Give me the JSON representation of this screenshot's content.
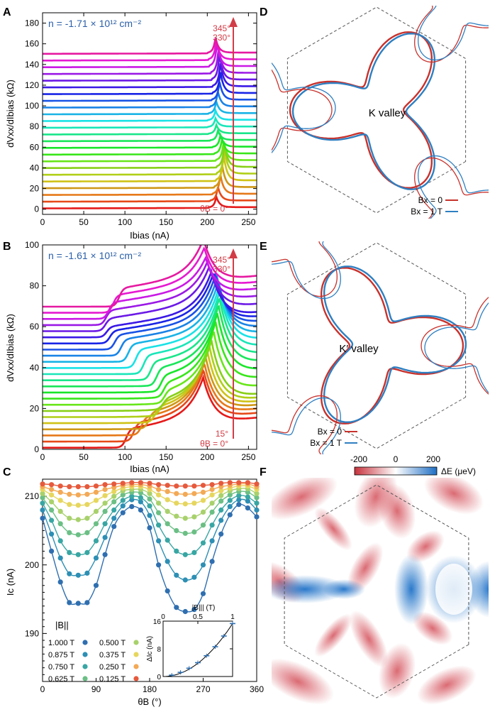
{
  "panels": {
    "A": {
      "letter": "A",
      "density": "n = -1.71 × 10¹² cm⁻²",
      "top_angles": [
        "345°",
        "330°"
      ],
      "bottom_angle": "θB = 0°"
    },
    "B": {
      "letter": "B",
      "density": "n = -1.61 × 10¹² cm⁻²",
      "top_angles": [
        "345°",
        "330°"
      ],
      "bottom_angles": [
        "15°",
        "θB = 0°"
      ]
    },
    "C": {
      "letter": "C",
      "legend_title": "|B||",
      "legend": [
        "1.000 T",
        "0.875 T",
        "0.750 T",
        "0.625 T",
        "0.500 T",
        "0.375 T",
        "0.250 T",
        "0.125 T"
      ],
      "inset_xlabel": "|B||| (T)",
      "inset_ylabel": "ΔIc (nA)"
    },
    "D": {
      "letter": "D",
      "valley": "K valley",
      "legend": [
        "Bx = 0",
        "Bx = 1 T"
      ]
    },
    "E": {
      "letter": "E",
      "valley": "K′ valley",
      "legend": [
        "Bx = 0",
        "Bx = 1 T"
      ]
    },
    "F": {
      "letter": "F",
      "colorbar_ticks": [
        "-200",
        "0",
        "200"
      ],
      "colorbar_label": "ΔE (μeV)"
    }
  },
  "colors": {
    "red": "#c8322c",
    "blue": "#2f7fc1",
    "arrow": "#d23c46",
    "dash": "#555555"
  },
  "chart_data": [
    {
      "type": "line",
      "id": "A",
      "xlabel": "Ibias (nA)",
      "ylabel": "dVxx/dIbias (kΩ)",
      "xlim": [
        0,
        260
      ],
      "ylim": [
        -5,
        190
      ],
      "xticks": [
        0,
        50,
        100,
        150,
        200,
        250
      ],
      "yticks": [
        0,
        20,
        40,
        60,
        80,
        100,
        120,
        140,
        160,
        180
      ],
      "series_count": 24,
      "angle_step_deg": 15,
      "offset_step_kohm": 6.5,
      "baseline_kohm": 0.8,
      "critical_current_nA": [
        211,
        213,
        216,
        218,
        220,
        221,
        221,
        220,
        218,
        216,
        213,
        211,
        210,
        210,
        211,
        213,
        215,
        216,
        216,
        215,
        214,
        212,
        211,
        210
      ],
      "peak_height_kohm": [
        10,
        13,
        18,
        22,
        24,
        24,
        22,
        18,
        14,
        11,
        9,
        8,
        8,
        9,
        11,
        14,
        17,
        20,
        22,
        24,
        24,
        22,
        18,
        14
      ]
    },
    {
      "type": "line",
      "id": "B",
      "xlabel": "Ibias (nA)",
      "ylabel": "dVxx/dIbias (kΩ)",
      "xlim": [
        0,
        260
      ],
      "ylim": [
        0,
        100
      ],
      "xticks": [
        0,
        50,
        100,
        150,
        200,
        250
      ],
      "yticks": [
        0,
        20,
        40,
        60,
        80,
        100
      ],
      "series_count": 24,
      "angle_step_deg": 15,
      "offset_step_kohm": 3.0,
      "baseline_kohm": 0.8
    },
    {
      "type": "scatter",
      "id": "C",
      "xlabel": "θB (°)",
      "ylabel": "Ic (nA)",
      "xlim": [
        0,
        360
      ],
      "ylim": [
        183,
        212.5
      ],
      "xticks": [
        0,
        90,
        180,
        270,
        360
      ],
      "yticks": [
        190,
        200,
        210
      ],
      "x": [
        0,
        15,
        30,
        45,
        60,
        75,
        90,
        105,
        120,
        135,
        150,
        165,
        180,
        195,
        210,
        225,
        240,
        255,
        270,
        285,
        300,
        315,
        330,
        345,
        360
      ],
      "series": [
        {
          "name": "1.000 T",
          "color": "#2f6fb0",
          "values": [
            206.8,
            202.0,
            197.5,
            194.5,
            194.4,
            194.5,
            197.0,
            201.5,
            205.6,
            207.6,
            208.5,
            208.0,
            205.4,
            200.0,
            196.2,
            193.8,
            193.2,
            193.5,
            195.8,
            200.5,
            204.5,
            207.3,
            208.8,
            208.3,
            207.0
          ]
        },
        {
          "name": "0.875 T",
          "color": "#2d8fb4",
          "values": [
            208.0,
            204.5,
            201.0,
            198.7,
            198.5,
            198.8,
            201.0,
            204.0,
            206.8,
            208.6,
            209.5,
            209.2,
            207.2,
            203.5,
            200.5,
            198.5,
            197.8,
            198.2,
            200.0,
            203.5,
            206.5,
            208.5,
            209.5,
            209.3,
            208.0
          ]
        },
        {
          "name": "0.750 T",
          "color": "#38a6a3",
          "values": [
            209.0,
            206.5,
            203.5,
            201.8,
            201.5,
            201.8,
            203.5,
            206.0,
            208.0,
            209.4,
            210.0,
            209.8,
            208.6,
            205.8,
            203.6,
            202.0,
            201.5,
            201.8,
            203.2,
            205.8,
            208.0,
            209.4,
            210.1,
            209.9,
            209.0
          ]
        },
        {
          "name": "0.625 T",
          "color": "#6bbf85",
          "values": [
            209.8,
            208.0,
            206.0,
            204.7,
            204.4,
            204.7,
            206.0,
            207.8,
            209.2,
            210.2,
            210.6,
            210.5,
            209.6,
            207.6,
            206.0,
            205.0,
            204.6,
            204.8,
            205.8,
            207.7,
            209.3,
            210.2,
            210.7,
            210.6,
            209.8
          ]
        },
        {
          "name": "0.500 T",
          "color": "#a8d16c",
          "values": [
            210.4,
            209.2,
            207.8,
            206.8,
            206.6,
            206.8,
            207.8,
            209.0,
            210.0,
            210.8,
            211.0,
            211.0,
            210.4,
            209.0,
            207.8,
            207.1,
            206.8,
            207.0,
            207.7,
            209.0,
            210.1,
            210.8,
            211.1,
            211.1,
            210.4
          ]
        },
        {
          "name": "0.375 T",
          "color": "#e6d65e",
          "values": [
            211.0,
            210.2,
            209.4,
            208.8,
            208.7,
            208.8,
            209.4,
            210.1,
            210.7,
            211.2,
            211.4,
            211.4,
            211.0,
            210.2,
            209.5,
            209.0,
            208.9,
            209.0,
            209.4,
            210.2,
            210.8,
            211.2,
            211.5,
            211.5,
            211.0
          ]
        },
        {
          "name": "0.250 T",
          "color": "#f3a955",
          "values": [
            211.4,
            211.0,
            210.6,
            210.3,
            210.2,
            210.3,
            210.6,
            211.0,
            211.3,
            211.6,
            211.7,
            211.7,
            211.5,
            211.0,
            210.7,
            210.4,
            210.3,
            210.4,
            210.6,
            211.0,
            211.4,
            211.6,
            211.8,
            211.8,
            211.4
          ]
        },
        {
          "name": "0.125 T",
          "color": "#e65a3c",
          "values": [
            211.8,
            211.7,
            211.5,
            211.4,
            211.4,
            211.4,
            211.5,
            211.7,
            211.8,
            211.9,
            212.0,
            212.0,
            211.9,
            211.7,
            211.6,
            211.5,
            211.5,
            211.5,
            211.6,
            211.7,
            211.9,
            212.0,
            212.0,
            212.0,
            211.8
          ]
        }
      ],
      "inset": {
        "type": "scatter",
        "x": [
          0.125,
          0.25,
          0.375,
          0.5,
          0.625,
          0.75,
          0.875,
          1.0
        ],
        "values": [
          0.4,
          1.2,
          2.4,
          4.0,
          6.0,
          8.6,
          11.7,
          15.3
        ],
        "xlim": [
          0,
          1
        ],
        "ylim": [
          0,
          16
        ],
        "xticks": [
          0,
          0.5,
          1
        ],
        "yticks": [
          0,
          8,
          16
        ]
      }
    },
    {
      "type": "heatmap",
      "id": "F",
      "title": "",
      "colorbar": {
        "min": -200,
        "max": 200,
        "ticks": [
          -200,
          0,
          200
        ]
      }
    }
  ]
}
